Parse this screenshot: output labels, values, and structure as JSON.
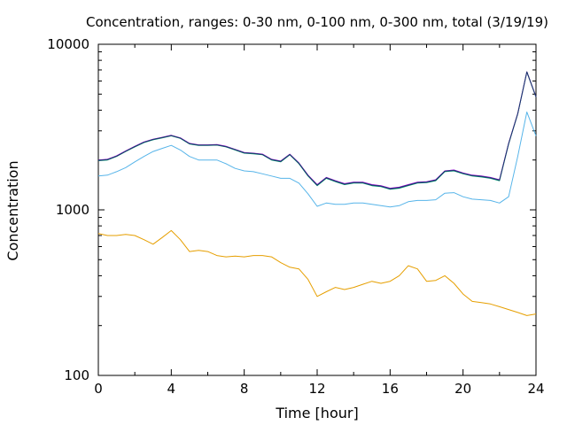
{
  "chart_data": {
    "type": "line",
    "title": "Concentration, ranges: 0-30 nm, 0-100 nm, 0-300 nm, total (3/19/19)",
    "xlabel": "Time [hour]",
    "ylabel": "Concentration",
    "xlim": [
      0,
      24
    ],
    "ylim": [
      100,
      10000
    ],
    "yscale": "log",
    "x_ticks": [
      0,
      4,
      8,
      12,
      16,
      20,
      24
    ],
    "x_tick_labels": [
      "0",
      "4",
      "8",
      "12",
      "16",
      "20",
      "24"
    ],
    "y_ticks": [
      100,
      1000,
      10000
    ],
    "y_tick_labels": [
      "100",
      "1000",
      "10000"
    ],
    "grid": false,
    "legend": "none",
    "x": [
      0,
      0.5,
      1,
      1.5,
      2,
      2.5,
      3,
      3.5,
      4,
      4.5,
      5,
      5.5,
      6,
      6.5,
      7,
      7.5,
      8,
      8.5,
      9,
      9.5,
      10,
      10.5,
      11,
      11.5,
      12,
      12.5,
      13,
      13.5,
      14,
      14.5,
      15,
      15.5,
      16,
      16.5,
      17,
      17.5,
      18,
      18.5,
      19,
      19.5,
      20,
      20.5,
      21,
      21.5,
      22,
      22.5,
      23,
      23.5,
      24
    ],
    "series": [
      {
        "color": "#e69f00",
        "values": [
          720,
          700,
          700,
          710,
          700,
          660,
          620,
          680,
          750,
          660,
          560,
          570,
          560,
          530,
          520,
          525,
          520,
          530,
          530,
          520,
          480,
          450,
          440,
          380,
          300,
          320,
          340,
          330,
          340,
          355,
          370,
          360,
          370,
          400,
          460,
          440,
          370,
          375,
          400,
          360,
          310,
          280,
          275,
          270,
          260,
          250,
          240,
          230,
          235
        ]
      },
      {
        "color": "#56b4e9",
        "values": [
          1600,
          1620,
          1700,
          1800,
          1950,
          2100,
          2250,
          2350,
          2450,
          2300,
          2100,
          2000,
          2000,
          2000,
          1900,
          1780,
          1720,
          1700,
          1650,
          1600,
          1550,
          1550,
          1450,
          1250,
          1050,
          1100,
          1080,
          1080,
          1100,
          1100,
          1080,
          1060,
          1040,
          1060,
          1120,
          1140,
          1140,
          1150,
          1260,
          1270,
          1200,
          1160,
          1150,
          1140,
          1100,
          1200,
          2100,
          3900,
          2800
        ]
      },
      {
        "color": "#009e73",
        "values": [
          1980,
          2000,
          2100,
          2250,
          2400,
          2550,
          2650,
          2720,
          2800,
          2700,
          2500,
          2450,
          2450,
          2460,
          2400,
          2300,
          2200,
          2180,
          2150,
          2000,
          1950,
          2150,
          1900,
          1600,
          1400,
          1550,
          1480,
          1420,
          1450,
          1450,
          1400,
          1380,
          1330,
          1350,
          1400,
          1450,
          1460,
          1500,
          1700,
          1720,
          1650,
          1600,
          1580,
          1550,
          1500,
          2500,
          3800,
          6800,
          4800
        ]
      },
      {
        "color": "#9400d3",
        "values": [
          2000,
          2020,
          2120,
          2270,
          2420,
          2570,
          2670,
          2740,
          2820,
          2720,
          2520,
          2470,
          2470,
          2480,
          2420,
          2320,
          2220,
          2200,
          2170,
          2020,
          1970,
          2170,
          1920,
          1620,
          1420,
          1570,
          1500,
          1440,
          1470,
          1470,
          1420,
          1400,
          1350,
          1370,
          1420,
          1470,
          1480,
          1520,
          1720,
          1740,
          1670,
          1620,
          1600,
          1570,
          1520,
          2520,
          3820,
          6820,
          4820
        ]
      },
      {
        "color": "#1a3a6a",
        "values": [
          1990,
          2010,
          2110,
          2260,
          2410,
          2560,
          2660,
          2730,
          2810,
          2710,
          2510,
          2460,
          2460,
          2470,
          2410,
          2310,
          2210,
          2190,
          2160,
          2010,
          1960,
          2160,
          1910,
          1610,
          1410,
          1560,
          1490,
          1430,
          1460,
          1460,
          1410,
          1390,
          1340,
          1360,
          1410,
          1460,
          1470,
          1510,
          1710,
          1730,
          1660,
          1610,
          1590,
          1560,
          1510,
          2510,
          3810,
          6810,
          4810
        ]
      }
    ]
  }
}
